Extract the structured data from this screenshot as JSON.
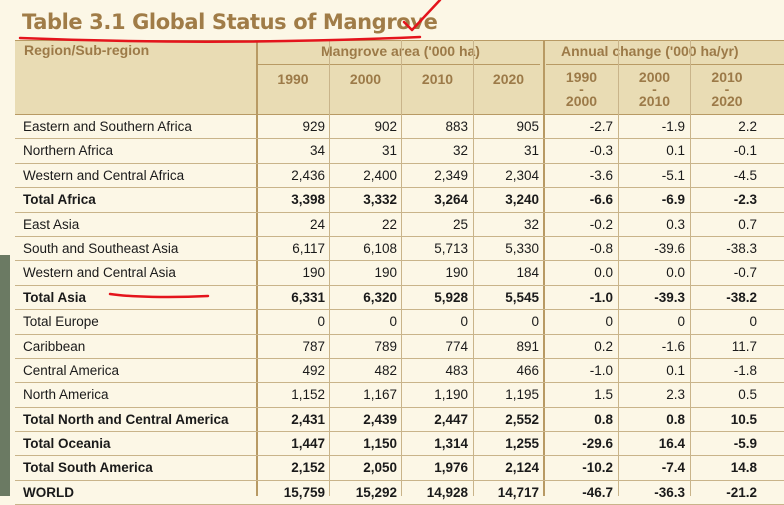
{
  "title": "Table 3.1 Global Status of Mangrove",
  "headers": {
    "region": "Region/Sub-region",
    "area": "Mangrove area ('000 ha)",
    "change": "Annual change ('000 ha/yr)"
  },
  "years": [
    "1990",
    "2000",
    "2010",
    "2020"
  ],
  "periods": [
    {
      "from": "1990",
      "to": "2000"
    },
    {
      "from": "2000",
      "to": "2010"
    },
    {
      "from": "2010",
      "to": "2020"
    }
  ],
  "dash": "-",
  "rows": [
    {
      "label": "Eastern and Southern Africa",
      "total": false,
      "v": [
        "929",
        "902",
        "883",
        "905",
        "-2.7",
        "-1.9",
        "2.2"
      ]
    },
    {
      "label": "Northern Africa",
      "total": false,
      "v": [
        "34",
        "31",
        "32",
        "31",
        "-0.3",
        "0.1",
        "-0.1"
      ]
    },
    {
      "label": "Western and Central Africa",
      "total": false,
      "v": [
        "2,436",
        "2,400",
        "2,349",
        "2,304",
        "-3.6",
        "-5.1",
        "-4.5"
      ]
    },
    {
      "label": "Total Africa",
      "total": true,
      "v": [
        "3,398",
        "3,332",
        "3,264",
        "3,240",
        "-6.6",
        "-6.9",
        "-2.3"
      ]
    },
    {
      "label": "East Asia",
      "total": false,
      "v": [
        "24",
        "22",
        "25",
        "32",
        "-0.2",
        "0.3",
        "0.7"
      ]
    },
    {
      "label": "South and Southeast Asia",
      "total": false,
      "v": [
        "6,117",
        "6,108",
        "5,713",
        "5,330",
        "-0.8",
        "-39.6",
        "-38.3"
      ]
    },
    {
      "label": "Western and Central Asia",
      "total": false,
      "v": [
        "190",
        "190",
        "190",
        "184",
        "0.0",
        "0.0",
        "-0.7"
      ]
    },
    {
      "label": "Total Asia",
      "total": true,
      "v": [
        "6,331",
        "6,320",
        "5,928",
        "5,545",
        "-1.0",
        "-39.3",
        "-38.2"
      ]
    },
    {
      "label": "Total Europe",
      "total": false,
      "v": [
        "0",
        "0",
        "0",
        "0",
        "0",
        "0",
        "0"
      ]
    },
    {
      "label": "Caribbean",
      "total": false,
      "v": [
        "787",
        "789",
        "774",
        "891",
        "0.2",
        "-1.6",
        "11.7"
      ]
    },
    {
      "label": "Central America",
      "total": false,
      "v": [
        "492",
        "482",
        "483",
        "466",
        "-1.0",
        "0.1",
        "-1.8"
      ]
    },
    {
      "label": "North America",
      "total": false,
      "v": [
        "1,152",
        "1,167",
        "1,190",
        "1,195",
        "1.5",
        "2.3",
        "0.5"
      ]
    },
    {
      "label": "Total North and Central America",
      "total": true,
      "v": [
        "2,431",
        "2,439",
        "2,447",
        "2,552",
        "0.8",
        "0.8",
        "10.5"
      ]
    },
    {
      "label": "Total Oceania",
      "total": true,
      "v": [
        "1,447",
        "1,150",
        "1,314",
        "1,255",
        "-29.6",
        "16.4",
        "-5.9"
      ]
    },
    {
      "label": "Total South America",
      "total": true,
      "v": [
        "2,152",
        "2,050",
        "1,976",
        "2,124",
        "-10.2",
        "-7.4",
        "14.8"
      ]
    },
    {
      "label": "WORLD",
      "total": true,
      "v": [
        "15,759",
        "15,292",
        "14,928",
        "14,717",
        "-46.7",
        "-36.3",
        "-21.2"
      ]
    }
  ],
  "colors": {
    "header_bg": "#e9dcb4",
    "header_text": "#9c7a48",
    "annotation_red": "#e4141c"
  }
}
